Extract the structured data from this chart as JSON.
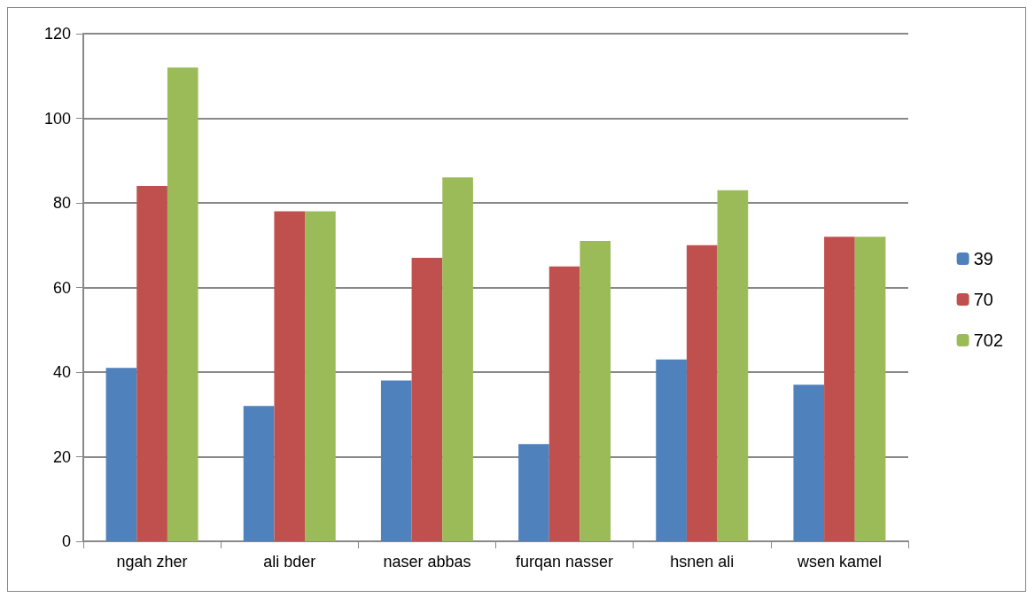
{
  "chart_data": {
    "type": "bar",
    "categories": [
      "ngah zher",
      "ali bder",
      "naser abbas",
      "furqan nasser",
      "hsnen ali",
      "wsen kamel"
    ],
    "series": [
      {
        "name": "39",
        "color": "#4f81bd",
        "values": [
          41,
          32,
          38,
          23,
          43,
          37
        ]
      },
      {
        "name": "70",
        "color": "#c0504d",
        "values": [
          84,
          78,
          67,
          65,
          70,
          72
        ]
      },
      {
        "name": "702",
        "color": "#9bbb59",
        "values": [
          112,
          78,
          86,
          71,
          83,
          72
        ]
      }
    ],
    "ylim": [
      0,
      120
    ],
    "yticks": [
      0,
      20,
      40,
      60,
      80,
      100,
      120
    ],
    "grid": "y",
    "legend": "right"
  }
}
